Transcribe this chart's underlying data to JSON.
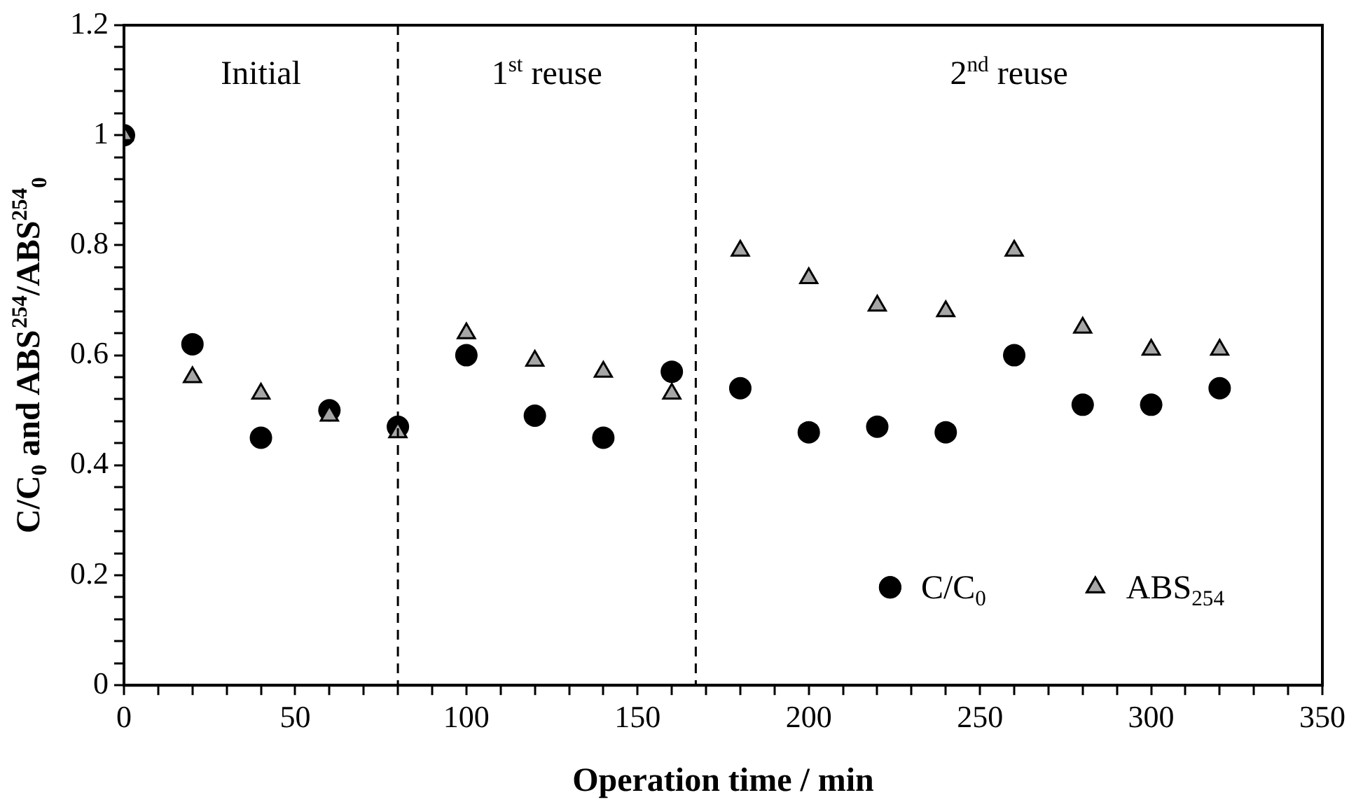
{
  "chart_data": {
    "type": "scatter",
    "xlabel": "Operation time / min",
    "ylabel": "C/C$_{0}$ and ABS$^{254}$/ABS$^{254}$$_{0}$",
    "x": [
      0,
      20,
      40,
      60,
      80,
      100,
      120,
      140,
      160,
      180,
      200,
      220,
      240,
      260,
      280,
      300,
      320
    ],
    "series": [
      {
        "name": "C/C$_{0}$",
        "color": "#000000",
        "marker": "circle",
        "values": [
          1.0,
          0.62,
          0.45,
          0.5,
          0.47,
          0.6,
          0.49,
          0.45,
          0.57,
          0.54,
          0.46,
          0.47,
          0.46,
          0.6,
          0.51,
          0.51,
          0.54
        ]
      },
      {
        "name": "ABS$_{254}$",
        "color": "#a6a6a6",
        "marker": "triangle",
        "values": [
          1.0,
          0.56,
          0.53,
          0.49,
          0.46,
          0.64,
          0.59,
          0.57,
          0.53,
          0.79,
          0.74,
          0.69,
          0.68,
          0.79,
          0.65,
          0.61,
          0.61
        ]
      }
    ],
    "xlim": [
      0,
      350
    ],
    "xticks": [
      0,
      {
        "value": 10,
        "label": null
      },
      {
        "value": 20,
        "label": null
      },
      {
        "value": 30,
        "label": null
      },
      {
        "value": 40,
        "label": null
      },
      50,
      {
        "value": 60,
        "label": null
      },
      {
        "value": 70,
        "label": null
      },
      {
        "value": 80,
        "label": null
      },
      {
        "value": 90,
        "label": null
      },
      100,
      {
        "value": 110,
        "label": null
      },
      {
        "value": 120,
        "label": null
      },
      {
        "value": 130,
        "label": null
      },
      {
        "value": 140,
        "label": null
      },
      150,
      {
        "value": 160,
        "label": null
      },
      {
        "value": 170,
        "label": null
      },
      {
        "value": 180,
        "label": null
      },
      {
        "value": 190,
        "label": null
      },
      200,
      {
        "value": 210,
        "label": null
      },
      {
        "value": 220,
        "label": null
      },
      {
        "value": 230,
        "label": null
      },
      {
        "value": 240,
        "label": null
      },
      250,
      {
        "value": 260,
        "label": null
      },
      {
        "value": 270,
        "label": null
      },
      {
        "value": 280,
        "label": null
      },
      {
        "value": 290,
        "label": null
      },
      300,
      {
        "value": 310,
        "label": null
      },
      {
        "value": 320,
        "label": null
      },
      {
        "value": 330,
        "label": null
      },
      {
        "value": 340,
        "label": null
      },
      350
    ],
    "ylim": [
      0,
      1.2
    ],
    "yticks": [
      0,
      {
        "value": 0.04,
        "label": null
      },
      {
        "value": 0.08,
        "label": null
      },
      {
        "value": 0.12,
        "label": null
      },
      {
        "value": 0.16,
        "label": null
      },
      0.2,
      {
        "value": 0.24,
        "label": null
      },
      {
        "value": 0.28,
        "label": null
      },
      {
        "value": 0.32,
        "label": null
      },
      {
        "value": 0.36,
        "label": null
      },
      0.4,
      {
        "value": 0.44,
        "label": null
      },
      {
        "value": 0.48,
        "label": null
      },
      {
        "value": 0.52,
        "label": null
      },
      {
        "value": 0.56,
        "label": null
      },
      0.6,
      {
        "value": 0.64,
        "label": null
      },
      {
        "value": 0.68,
        "label": null
      },
      {
        "value": 0.72,
        "label": null
      },
      {
        "value": 0.76,
        "label": null
      },
      0.8,
      {
        "value": 0.84,
        "label": null
      },
      {
        "value": 0.88,
        "label": null
      },
      {
        "value": 0.92,
        "label": null
      },
      {
        "value": 0.96,
        "label": null
      },
      1,
      {
        "value": 1.04,
        "label": null
      },
      {
        "value": 1.08,
        "label": null
      },
      {
        "value": 1.12,
        "label": null
      },
      {
        "value": 1.16,
        "label": null
      },
      1.2
    ],
    "ref_lines": [
      {
        "axis": "x",
        "value": 80,
        "color": "#000000",
        "line_style": "dashed"
      },
      {
        "axis": "x",
        "value": 167,
        "color": "#000000",
        "line_style": "dashed"
      }
    ],
    "annotations": [
      "Initial",
      "1$^{st}$ reuse",
      "2$^{nd}$ reuse"
    ],
    "grid": false,
    "legend": "bottom right"
  }
}
